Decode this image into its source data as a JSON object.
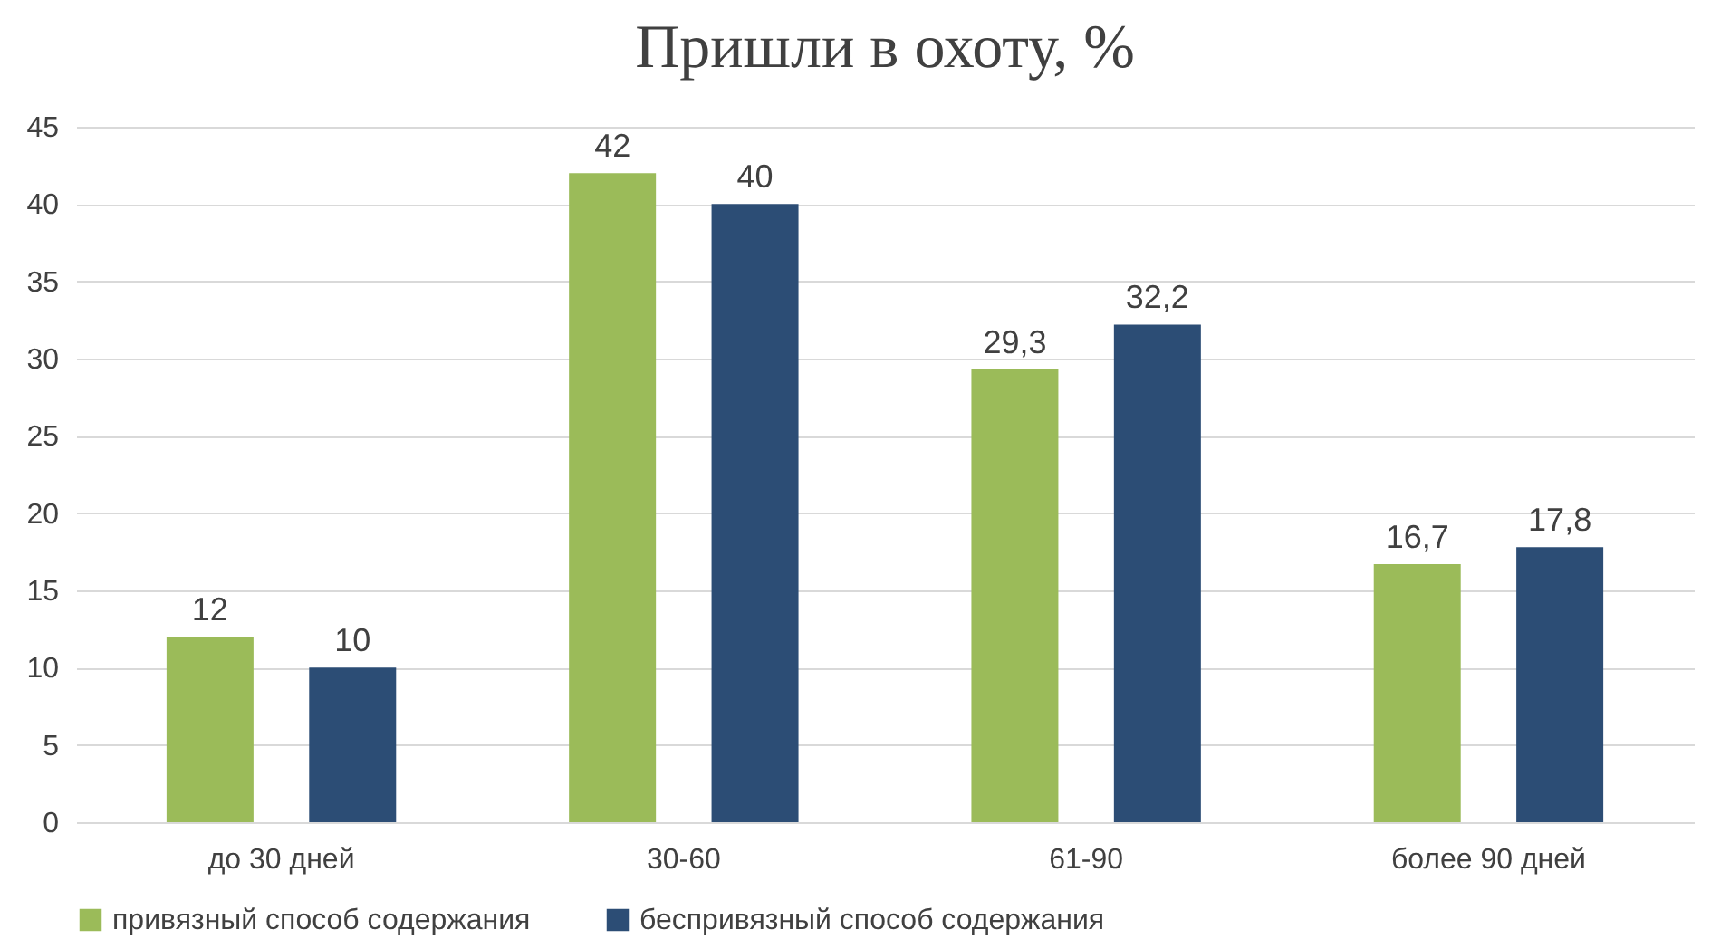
{
  "chart_data": {
    "type": "bar",
    "title": "Пришли в охоту, %",
    "categories": [
      "до 30 дней",
      "30-60",
      "61-90",
      "более 90 дней"
    ],
    "series": [
      {
        "name": "привязный способ содержания",
        "color": "#9bbb59",
        "values": [
          12,
          42,
          29.3,
          16.7
        ],
        "value_labels": [
          "12",
          "42",
          "29,3",
          "16,7"
        ]
      },
      {
        "name": "беспривязный способ содержания",
        "color": "#2c4d75",
        "values": [
          10,
          40,
          32.2,
          17.8
        ],
        "value_labels": [
          "10",
          "40",
          "32,2",
          "17,8"
        ]
      }
    ],
    "ylim": [
      0,
      45
    ],
    "yticks": [
      0,
      5,
      10,
      15,
      20,
      25,
      30,
      35,
      40,
      45
    ],
    "grid": "y",
    "legend": "bottom"
  }
}
